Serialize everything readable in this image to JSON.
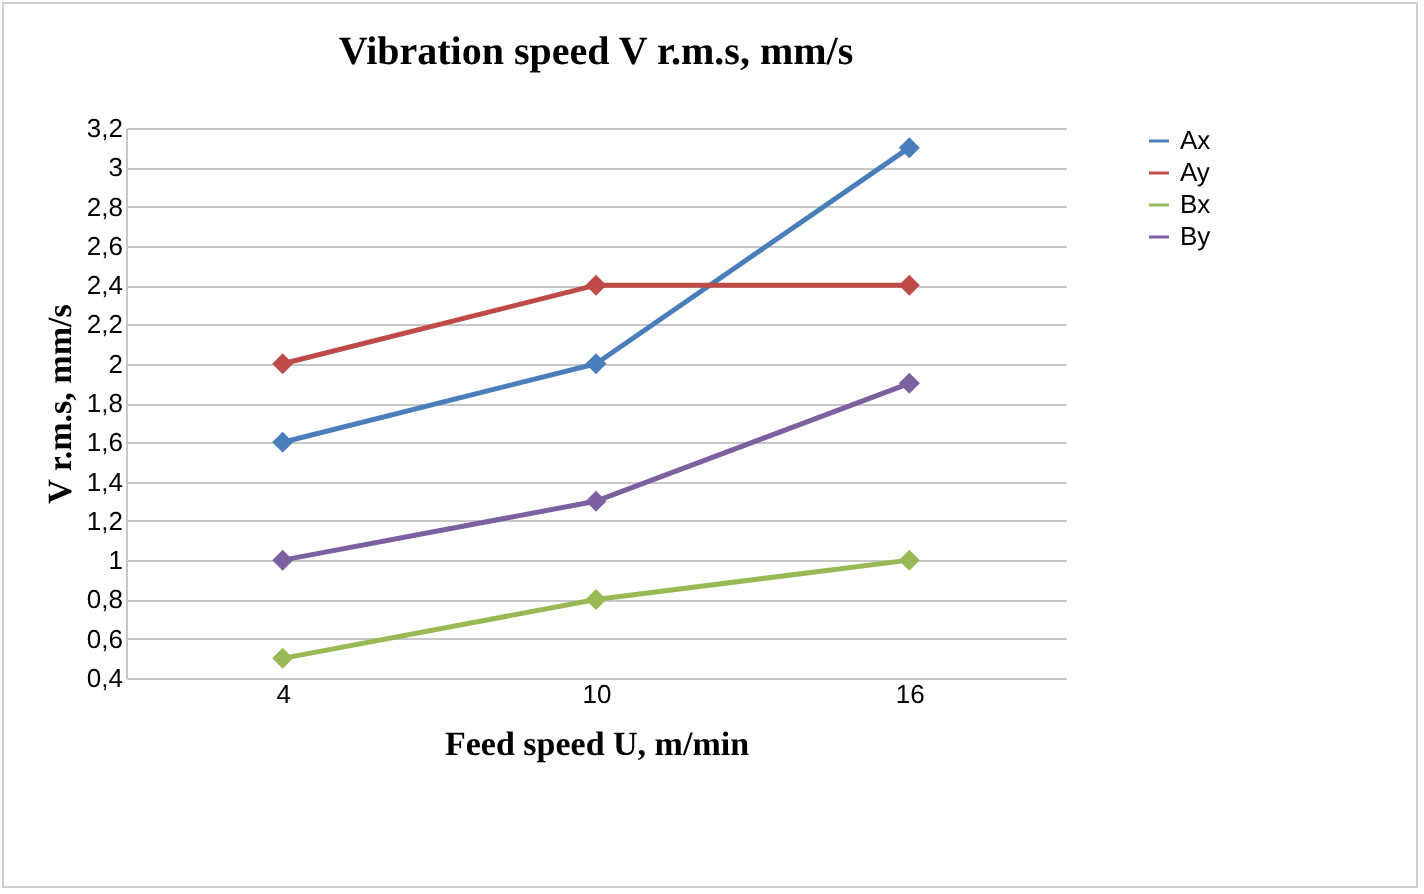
{
  "chart_data": {
    "type": "line",
    "title": "Vibration  speed V r.m.s, mm/s",
    "xlabel": "Feed speed U, m/min",
    "ylabel": "V r.m.s, mm/s",
    "categories": [
      "4",
      "10",
      "16"
    ],
    "series": [
      {
        "name": "Ax",
        "color": "#4a7ebb",
        "values": [
          1.6,
          2.0,
          3.1
        ]
      },
      {
        "name": "Ay",
        "color": "#be4b48",
        "values": [
          2.0,
          2.4,
          2.4
        ]
      },
      {
        "name": "Bx",
        "color": "#98b954",
        "values": [
          0.5,
          0.8,
          1.0
        ]
      },
      {
        "name": "By",
        "color": "#7d60a0",
        "values": [
          1.0,
          1.3,
          1.9
        ]
      }
    ],
    "ylim": [
      0.4,
      3.2
    ],
    "yticks": [
      {
        "value": 0.4,
        "label": "0,4"
      },
      {
        "value": 0.6,
        "label": "0,6"
      },
      {
        "value": 0.8,
        "label": "0,8"
      },
      1,
      {
        "value": 1.2,
        "label": "1,2"
      },
      {
        "value": 1.4,
        "label": "1,4"
      },
      {
        "value": 1.6,
        "label": "1,6"
      },
      {
        "value": 1.8,
        "label": "1,8"
      },
      2,
      {
        "value": 2.2,
        "label": "2,2"
      },
      {
        "value": 2.4,
        "label": "2,4"
      },
      {
        "value": 2.6,
        "label": "2,6"
      },
      {
        "value": 2.8,
        "label": "2,8"
      },
      3,
      {
        "value": 3.2,
        "label": "3,2"
      }
    ],
    "grid": "y",
    "legend": "right",
    "marker": "diamond",
    "line_style": "solid"
  }
}
